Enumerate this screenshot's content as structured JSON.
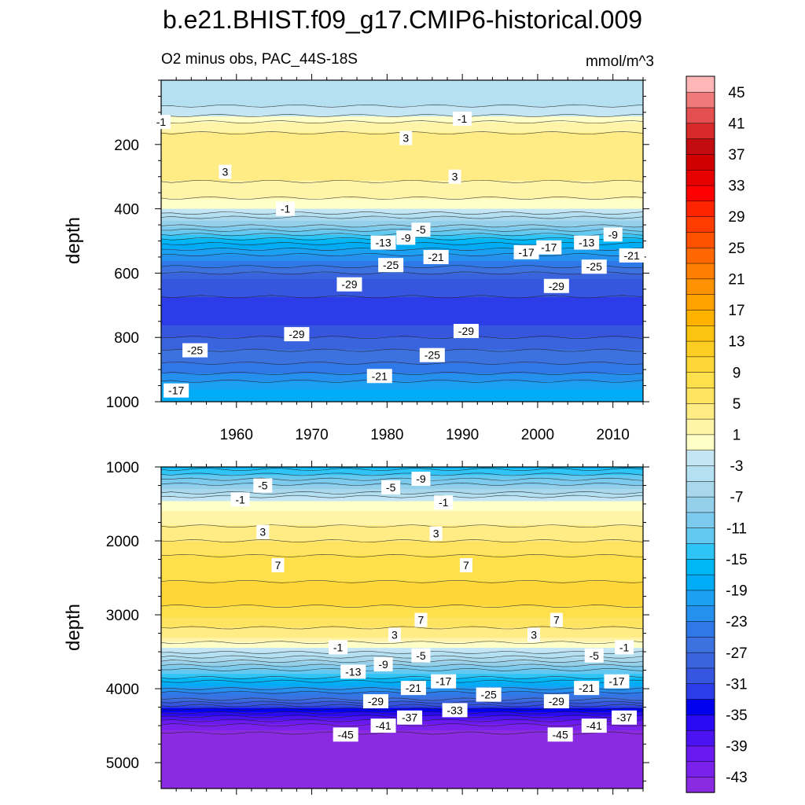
{
  "chart_data": {
    "type": "heatmap",
    "title": "b.e21.BHIST.f09_g17.CMIP6-historical.009",
    "subtitle_left": "O2 minus obs, PAC_44S-18S",
    "units": "mmol/m^3",
    "xrange": [
      1950,
      2014
    ],
    "panels": [
      {
        "name": "upper",
        "ylabel": "depth",
        "ylim": [
          0,
          1000
        ],
        "yticks": [
          200,
          400,
          600,
          800,
          1000
        ],
        "xticks": [
          1960,
          1970,
          1980,
          1990,
          2000,
          2010
        ],
        "profile": [
          {
            "depth": 0,
            "value": -4
          },
          {
            "depth": 60,
            "value": -4
          },
          {
            "depth": 100,
            "value": -2
          },
          {
            "depth": 140,
            "value": 2
          },
          {
            "depth": 200,
            "value": 4.5
          },
          {
            "depth": 280,
            "value": 4
          },
          {
            "depth": 350,
            "value": 2
          },
          {
            "depth": 400,
            "value": -1
          },
          {
            "depth": 440,
            "value": -7
          },
          {
            "depth": 500,
            "value": -16
          },
          {
            "depth": 560,
            "value": -23
          },
          {
            "depth": 620,
            "value": -29
          },
          {
            "depth": 700,
            "value": -32
          },
          {
            "depth": 760,
            "value": -31
          },
          {
            "depth": 820,
            "value": -28
          },
          {
            "depth": 900,
            "value": -24
          },
          {
            "depth": 960,
            "value": -19
          },
          {
            "depth": 1000,
            "value": -17
          }
        ],
        "contour_labels": [
          {
            "text": "-1",
            "year": 1950.0,
            "depth": 130
          },
          {
            "text": "-1",
            "year": 1990.0,
            "depth": 120
          },
          {
            "text": "3",
            "year": 1982.5,
            "depth": 180
          },
          {
            "text": "3",
            "year": 1958.5,
            "depth": 285
          },
          {
            "text": "3",
            "year": 1989.0,
            "depth": 300
          },
          {
            "text": "-1",
            "year": 1966.5,
            "depth": 400
          },
          {
            "text": "-5",
            "year": 1984.5,
            "depth": 465
          },
          {
            "text": "-9",
            "year": 1982.5,
            "depth": 490
          },
          {
            "text": "-13",
            "year": 1979.5,
            "depth": 505
          },
          {
            "text": "-17",
            "year": 1998.5,
            "depth": 535
          },
          {
            "text": "-21",
            "year": 1986.5,
            "depth": 550
          },
          {
            "text": "-25",
            "year": 1980.5,
            "depth": 575
          },
          {
            "text": "-29",
            "year": 1975.0,
            "depth": 635
          },
          {
            "text": "-29",
            "year": 2002.5,
            "depth": 640
          },
          {
            "text": "-17",
            "year": 2001.5,
            "depth": 520
          },
          {
            "text": "-13",
            "year": 2006.5,
            "depth": 505
          },
          {
            "text": "-9",
            "year": 2010.0,
            "depth": 480
          },
          {
            "text": "-21",
            "year": 2012.5,
            "depth": 545
          },
          {
            "text": "-25",
            "year": 2007.5,
            "depth": 580
          },
          {
            "text": "-29",
            "year": 1968.0,
            "depth": 790
          },
          {
            "text": "-29",
            "year": 1990.5,
            "depth": 780
          },
          {
            "text": "-25",
            "year": 1954.5,
            "depth": 840
          },
          {
            "text": "-25",
            "year": 1986.0,
            "depth": 855
          },
          {
            "text": "-21",
            "year": 1979.0,
            "depth": 920
          },
          {
            "text": "-17",
            "year": 1952.0,
            "depth": 965
          }
        ]
      },
      {
        "name": "lower",
        "ylabel": "depth",
        "ylim": [
          1000,
          5350
        ],
        "yticks": [
          1000,
          2000,
          3000,
          4000,
          5000
        ],
        "profile": [
          {
            "depth": 1000,
            "value": -16
          },
          {
            "depth": 1300,
            "value": -7
          },
          {
            "depth": 1450,
            "value": -1
          },
          {
            "depth": 1600,
            "value": 1
          },
          {
            "depth": 1900,
            "value": 4
          },
          {
            "depth": 2300,
            "value": 8
          },
          {
            "depth": 2800,
            "value": 10
          },
          {
            "depth": 3050,
            "value": 7
          },
          {
            "depth": 3300,
            "value": 3
          },
          {
            "depth": 3450,
            "value": -1
          },
          {
            "depth": 3600,
            "value": -6
          },
          {
            "depth": 3800,
            "value": -13
          },
          {
            "depth": 3950,
            "value": -19
          },
          {
            "depth": 4100,
            "value": -25
          },
          {
            "depth": 4250,
            "value": -32
          },
          {
            "depth": 4400,
            "value": -38
          },
          {
            "depth": 4550,
            "value": -43
          },
          {
            "depth": 4650,
            "value": -47
          },
          {
            "depth": 5350,
            "value": -47
          }
        ],
        "contour_labels": [
          {
            "text": "-5",
            "year": 1963.5,
            "depth": 1250
          },
          {
            "text": "-5",
            "year": 1980.5,
            "depth": 1275
          },
          {
            "text": "-9",
            "year": 1984.5,
            "depth": 1160
          },
          {
            "text": "-1",
            "year": 1960.5,
            "depth": 1440
          },
          {
            "text": "-1",
            "year": 1987.5,
            "depth": 1480
          },
          {
            "text": "3",
            "year": 1963.5,
            "depth": 1880
          },
          {
            "text": "3",
            "year": 1986.5,
            "depth": 1900
          },
          {
            "text": "7",
            "year": 1965.5,
            "depth": 2330
          },
          {
            "text": "7",
            "year": 1990.5,
            "depth": 2330
          },
          {
            "text": "7",
            "year": 1984.5,
            "depth": 3070
          },
          {
            "text": "7",
            "year": 2002.5,
            "depth": 3070
          },
          {
            "text": "3",
            "year": 1981.0,
            "depth": 3270
          },
          {
            "text": "3",
            "year": 1999.5,
            "depth": 3270
          },
          {
            "text": "-1",
            "year": 1973.5,
            "depth": 3440
          },
          {
            "text": "-1",
            "year": 2011.5,
            "depth": 3440
          },
          {
            "text": "-5",
            "year": 1984.5,
            "depth": 3550
          },
          {
            "text": "-5",
            "year": 2007.5,
            "depth": 3550
          },
          {
            "text": "-9",
            "year": 1979.5,
            "depth": 3670
          },
          {
            "text": "-13",
            "year": 1975.5,
            "depth": 3770
          },
          {
            "text": "-17",
            "year": 1987.5,
            "depth": 3900
          },
          {
            "text": "-17",
            "year": 2010.5,
            "depth": 3900
          },
          {
            "text": "-21",
            "year": 1983.5,
            "depth": 3990
          },
          {
            "text": "-21",
            "year": 2006.5,
            "depth": 3990
          },
          {
            "text": "-25",
            "year": 1993.5,
            "depth": 4080
          },
          {
            "text": "-29",
            "year": 1978.5,
            "depth": 4170
          },
          {
            "text": "-29",
            "year": 2002.5,
            "depth": 4170
          },
          {
            "text": "-33",
            "year": 1989.0,
            "depth": 4290
          },
          {
            "text": "-37",
            "year": 1983.0,
            "depth": 4390
          },
          {
            "text": "-37",
            "year": 2011.5,
            "depth": 4390
          },
          {
            "text": "-41",
            "year": 1979.5,
            "depth": 4500
          },
          {
            "text": "-41",
            "year": 2007.5,
            "depth": 4500
          },
          {
            "text": "-45",
            "year": 1974.5,
            "depth": 4620
          },
          {
            "text": "-45",
            "year": 2003.0,
            "depth": 4620
          }
        ]
      }
    ],
    "colorbar": {
      "levels": [
        -45,
        -43,
        -41,
        -39,
        -37,
        -35,
        -33,
        -31,
        -29,
        -27,
        -25,
        -23,
        -21,
        -19,
        -17,
        -15,
        -13,
        -11,
        -9,
        -7,
        -5,
        -3,
        -1,
        1,
        3,
        5,
        7,
        9,
        11,
        13,
        15,
        17,
        19,
        21,
        23,
        25,
        27,
        29,
        31,
        33,
        35,
        37,
        39,
        41,
        43,
        45
      ],
      "tick_labels": [
        "45",
        "41",
        "37",
        "33",
        "29",
        "25",
        "21",
        "17",
        "13",
        "9",
        "5",
        "1",
        "-3",
        "-7",
        "-11",
        "-15",
        "-19",
        "-23",
        "-27",
        "-31",
        "-35",
        "-39",
        "-43"
      ],
      "colors": [
        "#8a2be2",
        "#7a22ec",
        "#6a1af0",
        "#4b12f2",
        "#2a0af4",
        "#0000ee",
        "#2c3ce8",
        "#3756df",
        "#3a64de",
        "#3c72e0",
        "#2e78e8",
        "#2590ee",
        "#1ba0f2",
        "#00acf6",
        "#00b7f6",
        "#2ec4f6",
        "#64c9f0",
        "#7ccbee",
        "#94d0ea",
        "#a9d8ed",
        "#b4e0f2",
        "#c4e6f4",
        "#ffffc8",
        "#fff4a8",
        "#ffec84",
        "#ffe462",
        "#fee04c",
        "#fed638",
        "#fdcd24",
        "#fcc410",
        "#ffb300",
        "#ffa200",
        "#ff9200",
        "#ff7f00",
        "#ff6800",
        "#ff5200",
        "#ff3c00",
        "#ff2400",
        "#ff0000",
        "#e60000",
        "#d00000",
        "#c20c10",
        "#d82a2a",
        "#e45050",
        "#f07a7a",
        "#ffb6b6"
      ]
    }
  }
}
